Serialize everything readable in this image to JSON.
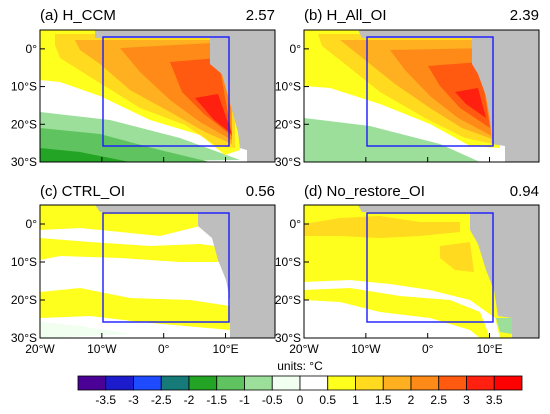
{
  "chart_data": {
    "type": "heatmap",
    "colorbar": {
      "units_label": "units: °C",
      "levels": [
        "-3.5",
        "-3",
        "-2.5",
        "-2",
        "-1.5",
        "-1",
        "-0.5",
        "0",
        "0.5",
        "1",
        "1.5",
        "2",
        "2.5",
        "3",
        "3.5"
      ],
      "colors": [
        "#4b0096",
        "#1c1ccc",
        "#1e4bff",
        "#157a78",
        "#24a424",
        "#5fc45f",
        "#9bdf9b",
        "#f0fff0",
        "#ffffff",
        "#ffff1e",
        "#ffda1e",
        "#ffb020",
        "#ff8a18",
        "#ff5a10",
        "#ff2010",
        "#ff0000"
      ]
    },
    "x_ticks": [
      "20°W",
      "10°W",
      "0°",
      "10°E"
    ],
    "y_ticks": [
      "0°",
      "10°S",
      "20°S",
      "30°S"
    ],
    "box_region": {
      "lon": [
        -10,
        10
      ],
      "lat": [
        -25,
        3
      ]
    },
    "panels": [
      {
        "title": "(a) H_CCM",
        "value": "2.57"
      },
      {
        "title": "(b) H_All_OI",
        "value": "2.39"
      },
      {
        "title": "(c) CTRL_OI",
        "value": "0.56"
      },
      {
        "title": "(d) No_restore_OI",
        "value": "0.94"
      }
    ]
  }
}
